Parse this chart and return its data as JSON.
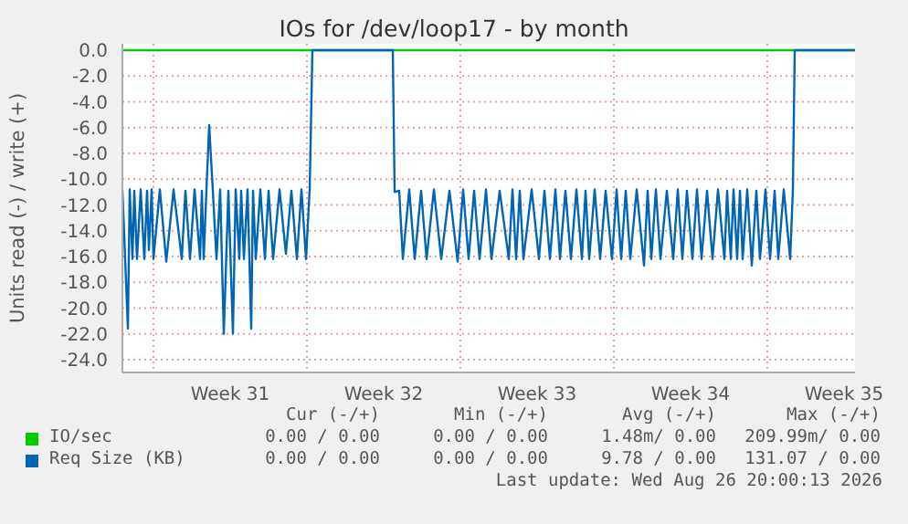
{
  "chart_data": {
    "type": "line",
    "title": "IOs for /dev/loop17 - by month",
    "ylabel": "Units read (-) / write (+)",
    "xlim": [
      "2026-07-24T14:00",
      "2026-08-27T00:00"
    ],
    "xticks": [
      {
        "value": "2026-07-26T00:00",
        "label": null
      },
      {
        "value": "2026-07-29T12:00",
        "label": "Week 31"
      },
      {
        "value": "2026-08-02T00:00",
        "label": null
      },
      {
        "value": "2026-08-05T12:00",
        "label": "Week 32"
      },
      {
        "value": "2026-08-09T00:00",
        "label": null
      },
      {
        "value": "2026-08-12T12:00",
        "label": "Week 33"
      },
      {
        "value": "2026-08-16T00:00",
        "label": null
      },
      {
        "value": "2026-08-19T12:00",
        "label": "Week 34"
      },
      {
        "value": "2026-08-23T00:00",
        "label": null
      },
      {
        "value": "2026-08-26T12:00",
        "label": "Week 35"
      }
    ],
    "ylim": [
      -25,
      0.5
    ],
    "yticks": [
      {
        "value": 0,
        "label": "0.0"
      },
      {
        "value": -2,
        "label": "-2.0"
      },
      {
        "value": -4,
        "label": "-4.0"
      },
      {
        "value": -6,
        "label": "-6.0"
      },
      {
        "value": -8,
        "label": "-8.0"
      },
      {
        "value": -10,
        "label": "-10.0"
      },
      {
        "value": -12,
        "label": "-12.0"
      },
      {
        "value": -14,
        "label": "-14.0"
      },
      {
        "value": -16,
        "label": "-16.0"
      },
      {
        "value": -18,
        "label": "-18.0"
      },
      {
        "value": -20,
        "label": "-20.0"
      },
      {
        "value": -22,
        "label": "-22.0"
      },
      {
        "value": -24,
        "label": "-24.0"
      }
    ],
    "grid": true,
    "legend": "bottom",
    "line_style": "solid",
    "series": [
      {
        "name": "IO/sec",
        "color": "#00cc00",
        "x": [
          "2026-07-24T14:00",
          "2026-08-27T00:00"
        ],
        "values": [
          0,
          0
        ]
      },
      {
        "name": "Req Size (KB)",
        "color": "#0066b3",
        "x": [
          "2026-07-24T14:00",
          "2026-07-24T20:00",
          "2026-07-24T22:00",
          "2026-07-25T01:00",
          "2026-07-25T03:00",
          "2026-07-25T06:00",
          "2026-07-25T10:00",
          "2026-07-25T14:00",
          "2026-07-25T17:00",
          "2026-07-25T19:00",
          "2026-07-25T22:00",
          "2026-07-26T00:00",
          "2026-07-26T07:00",
          "2026-07-26T14:00",
          "2026-07-26T22:00",
          "2026-07-27T07:00",
          "2026-07-27T11:00",
          "2026-07-27T16:00",
          "2026-07-27T21:00",
          "2026-07-28T03:00",
          "2026-07-28T05:00",
          "2026-07-28T07:00",
          "2026-07-28T10:00",
          "2026-07-28T13:00",
          "2026-07-28T17:00",
          "2026-07-28T21:00",
          "2026-07-29T01:00",
          "2026-07-29T05:00",
          "2026-07-29T10:00",
          "2026-07-29T15:00",
          "2026-07-29T18:00",
          "2026-07-29T22:00",
          "2026-07-30T00:00",
          "2026-07-30T03:00",
          "2026-07-30T07:00",
          "2026-07-30T11:00",
          "2026-07-30T13:00",
          "2026-07-30T16:00",
          "2026-07-30T21:00",
          "2026-07-31T02:00",
          "2026-07-31T06:00",
          "2026-07-31T11:00",
          "2026-07-31T18:00",
          "2026-08-01T01:00",
          "2026-08-01T07:00",
          "2026-08-01T13:00",
          "2026-08-01T18:00",
          "2026-08-01T23:00",
          "2026-08-02T03:00",
          "2026-08-02T06:00",
          "2026-08-05T22:00",
          "2026-08-06T00:00",
          "2026-08-06T05:00",
          "2026-08-06T09:00",
          "2026-08-06T16:00",
          "2026-08-06T22:00",
          "2026-08-07T05:00",
          "2026-08-07T11:00",
          "2026-08-07T19:00",
          "2026-08-08T03:00",
          "2026-08-08T12:00",
          "2026-08-08T21:00",
          "2026-08-09T03:00",
          "2026-08-09T09:00",
          "2026-08-09T15:00",
          "2026-08-09T21:00",
          "2026-08-10T04:00",
          "2026-08-10T10:00",
          "2026-08-10T19:00",
          "2026-08-11T05:00",
          "2026-08-11T09:00",
          "2026-08-11T13:00",
          "2026-08-11T17:00",
          "2026-08-11T21:00",
          "2026-08-12T06:00",
          "2026-08-12T14:00",
          "2026-08-12T20:00",
          "2026-08-13T02:00",
          "2026-08-13T08:00",
          "2026-08-13T13:00",
          "2026-08-13T19:00",
          "2026-08-14T01:00",
          "2026-08-14T07:00",
          "2026-08-14T13:00",
          "2026-08-14T17:00",
          "2026-08-14T21:00",
          "2026-08-15T03:00",
          "2026-08-15T09:00",
          "2026-08-15T15:00",
          "2026-08-15T22:00",
          "2026-08-16T03:00",
          "2026-08-16T08:00",
          "2026-08-16T13:00",
          "2026-08-16T18:00",
          "2026-08-17T01:00",
          "2026-08-17T09:00",
          "2026-08-17T13:00",
          "2026-08-17T17:00",
          "2026-08-17T22:00",
          "2026-08-18T03:00",
          "2026-08-18T10:00",
          "2026-08-18T17:00",
          "2026-08-18T22:00",
          "2026-08-19T03:00",
          "2026-08-19T08:00",
          "2026-08-19T14:00",
          "2026-08-19T19:00",
          "2026-08-20T00:00",
          "2026-08-20T06:00",
          "2026-08-20T12:00",
          "2026-08-20T18:00",
          "2026-08-21T01:00",
          "2026-08-21T04:00",
          "2026-08-21T08:00",
          "2026-08-21T11:00",
          "2026-08-21T15:00",
          "2026-08-21T18:00",
          "2026-08-21T21:00",
          "2026-08-22T02:00",
          "2026-08-22T07:00",
          "2026-08-22T12:00",
          "2026-08-22T16:00",
          "2026-08-22T22:00",
          "2026-08-23T03:00",
          "2026-08-23T08:00",
          "2026-08-23T12:00",
          "2026-08-23T18:00",
          "2026-08-24T01:00",
          "2026-08-24T04:00",
          "2026-08-24T06:00",
          "2026-08-27T00:00"
        ],
        "values": [
          -10.8,
          -21.6,
          -10.8,
          -16.2,
          -10.9,
          -16.2,
          -10.8,
          -16.2,
          -10.9,
          -15.5,
          -10.8,
          -16.2,
          -10.8,
          -16.4,
          -10.8,
          -16.2,
          -10.9,
          -16.2,
          -10.8,
          -16.2,
          -10.9,
          -16.2,
          -10.8,
          -5.8,
          -10.9,
          -16.2,
          -10.8,
          -22.0,
          -10.9,
          -22.0,
          -10.8,
          -16.2,
          -10.9,
          -16.2,
          -10.8,
          -21.6,
          -10.9,
          -16.2,
          -10.8,
          -16.2,
          -10.9,
          -16.2,
          -10.8,
          -15.8,
          -10.9,
          -16.2,
          -10.8,
          -16.2,
          -10.8,
          0,
          0,
          -11.0,
          -10.9,
          -16.2,
          -10.8,
          -16.2,
          -10.9,
          -16.2,
          -10.8,
          -16.2,
          -10.9,
          -16.4,
          -10.8,
          -16.2,
          -10.9,
          -16.2,
          -10.8,
          -16.2,
          -10.9,
          -16.2,
          -10.8,
          -16.2,
          -10.9,
          -16.2,
          -10.8,
          -16.2,
          -10.9,
          -16.2,
          -10.8,
          -16.2,
          -10.9,
          -16.2,
          -10.8,
          -16.2,
          -10.9,
          -16.2,
          -10.8,
          -16.2,
          -10.9,
          -16.2,
          -10.8,
          -16.2,
          -10.9,
          -16.2,
          -10.8,
          -16.7,
          -10.9,
          -16.2,
          -10.8,
          -16.2,
          -10.9,
          -16.2,
          -10.8,
          -16.2,
          -10.9,
          -16.2,
          -10.8,
          -16.2,
          -10.9,
          -16.2,
          -10.8,
          -16.2,
          -10.9,
          -16.2,
          -10.8,
          -16.2,
          -10.9,
          -16.2,
          -10.8,
          -16.7,
          -10.9,
          -16.2,
          -10.8,
          -16.2,
          -10.9,
          -16.2,
          -10.8,
          -16.2,
          -10.8,
          0,
          0
        ]
      }
    ],
    "annotations": [
      "Cur (-/+)",
      "Min (-/+)",
      "Avg (-/+)",
      "Max (-/+)",
      "0.00 / 0.00",
      "0.00 / 0.00",
      "1.48m/ 0.00",
      "209.99m/ 0.00",
      "0.00 / 0.00",
      "0.00 / 0.00",
      "9.78 / 0.00",
      "131.07 / 0.00",
      "Last update: Wed Aug 26 20:00:13 2026"
    ]
  }
}
